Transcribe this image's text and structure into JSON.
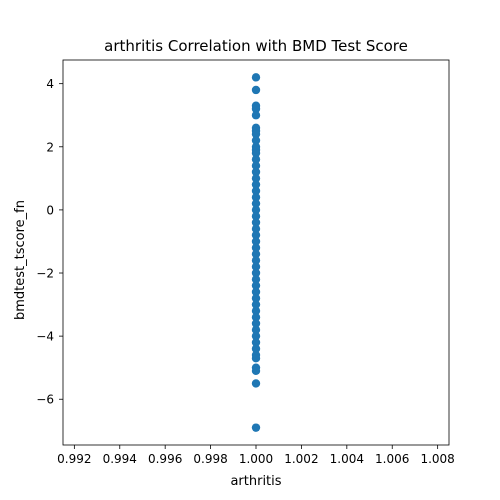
{
  "chart_data": {
    "type": "scatter",
    "title": "arthritis Correlation with BMD Test Score",
    "xlabel": "arthritis",
    "ylabel": "bmdtest_tscore_fn",
    "xlim": [
      0.9915,
      1.0085
    ],
    "ylim": [
      -7.45,
      4.75
    ],
    "xticks": [
      0.992,
      0.994,
      0.996,
      0.998,
      1.0,
      1.002,
      1.004,
      1.006,
      1.008
    ],
    "xtick_labels": [
      "0.992",
      "0.994",
      "0.996",
      "0.998",
      "1.000",
      "1.002",
      "1.004",
      "1.006",
      "1.008"
    ],
    "yticks": [
      4,
      2,
      0,
      -2,
      -4,
      -6
    ],
    "ytick_labels": [
      "4",
      "2",
      "0",
      "−2",
      "−4",
      "−6"
    ],
    "grid": false,
    "marker_color": "#1f77b4",
    "points": [
      {
        "x": 1.0,
        "y": 4.2
      },
      {
        "x": 1.0,
        "y": 3.8
      },
      {
        "x": 1.0,
        "y": 3.3
      },
      {
        "x": 1.0,
        "y": 3.2
      },
      {
        "x": 1.0,
        "y": 3.0
      },
      {
        "x": 1.0,
        "y": 2.6
      },
      {
        "x": 1.0,
        "y": 2.5
      },
      {
        "x": 1.0,
        "y": 2.4
      },
      {
        "x": 1.0,
        "y": 2.2
      },
      {
        "x": 1.0,
        "y": 2.0
      },
      {
        "x": 1.0,
        "y": 1.9
      },
      {
        "x": 1.0,
        "y": 1.8
      },
      {
        "x": 1.0,
        "y": 1.6
      },
      {
        "x": 1.0,
        "y": 1.4
      },
      {
        "x": 1.0,
        "y": 1.2
      },
      {
        "x": 1.0,
        "y": 1.0
      },
      {
        "x": 1.0,
        "y": 0.8
      },
      {
        "x": 1.0,
        "y": 0.6
      },
      {
        "x": 1.0,
        "y": 0.4
      },
      {
        "x": 1.0,
        "y": 0.2
      },
      {
        "x": 1.0,
        "y": 0.0
      },
      {
        "x": 1.0,
        "y": -0.2
      },
      {
        "x": 1.0,
        "y": -0.4
      },
      {
        "x": 1.0,
        "y": -0.6
      },
      {
        "x": 1.0,
        "y": -0.8
      },
      {
        "x": 1.0,
        "y": -1.0
      },
      {
        "x": 1.0,
        "y": -1.2
      },
      {
        "x": 1.0,
        "y": -1.4
      },
      {
        "x": 1.0,
        "y": -1.6
      },
      {
        "x": 1.0,
        "y": -1.8
      },
      {
        "x": 1.0,
        "y": -2.0
      },
      {
        "x": 1.0,
        "y": -2.2
      },
      {
        "x": 1.0,
        "y": -2.4
      },
      {
        "x": 1.0,
        "y": -2.6
      },
      {
        "x": 1.0,
        "y": -2.8
      },
      {
        "x": 1.0,
        "y": -3.0
      },
      {
        "x": 1.0,
        "y": -3.2
      },
      {
        "x": 1.0,
        "y": -3.4
      },
      {
        "x": 1.0,
        "y": -3.6
      },
      {
        "x": 1.0,
        "y": -3.8
      },
      {
        "x": 1.0,
        "y": -4.0
      },
      {
        "x": 1.0,
        "y": -4.2
      },
      {
        "x": 1.0,
        "y": -4.4
      },
      {
        "x": 1.0,
        "y": -4.6
      },
      {
        "x": 1.0,
        "y": -4.7
      },
      {
        "x": 1.0,
        "y": -5.0
      },
      {
        "x": 1.0,
        "y": -5.1
      },
      {
        "x": 1.0,
        "y": -5.5
      },
      {
        "x": 1.0,
        "y": -6.9
      }
    ]
  }
}
